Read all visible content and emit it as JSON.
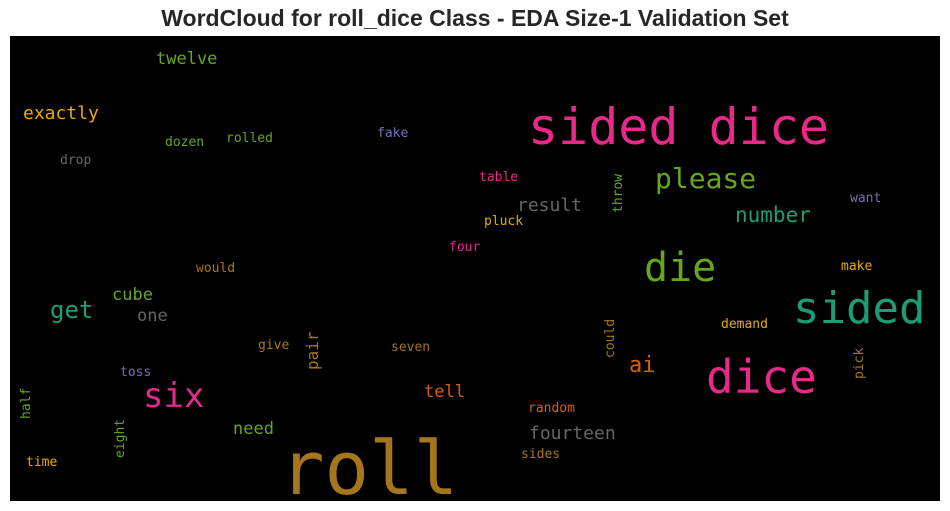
{
  "chart_data": {
    "type": "wordcloud",
    "title": "WordCloud for roll_dice Class - EDA Size-1 Validation Set",
    "background": "#000000",
    "words": [
      {
        "text": "roll",
        "weight": 1.0,
        "color": "#a6761d"
      },
      {
        "text": "sided dice",
        "weight": 0.78,
        "color": "#e7298a"
      },
      {
        "text": "dice",
        "weight": 0.72,
        "color": "#e7298a"
      },
      {
        "text": "sided",
        "weight": 0.68,
        "color": "#1b9e77"
      },
      {
        "text": "die",
        "weight": 0.6,
        "color": "#66a61e"
      },
      {
        "text": "six",
        "weight": 0.5,
        "color": "#e7298a"
      },
      {
        "text": "please",
        "weight": 0.44,
        "color": "#66a61e"
      },
      {
        "text": "number",
        "weight": 0.33,
        "color": "#1b9e77"
      },
      {
        "text": "get",
        "weight": 0.33,
        "color": "#1b9e77"
      },
      {
        "text": "exactly",
        "weight": 0.28,
        "color": "#e6ab02"
      },
      {
        "text": "ai",
        "weight": 0.3,
        "color": "#d95f02"
      },
      {
        "text": "result",
        "weight": 0.28,
        "color": "#666666"
      },
      {
        "text": "fourteen",
        "weight": 0.28,
        "color": "#666666"
      },
      {
        "text": "twelve",
        "weight": 0.26,
        "color": "#66a61e"
      },
      {
        "text": "cube",
        "weight": 0.26,
        "color": "#66a61e"
      },
      {
        "text": "one",
        "weight": 0.26,
        "color": "#666666"
      },
      {
        "text": "tell",
        "weight": 0.26,
        "color": "#d95f02"
      },
      {
        "text": "need",
        "weight": 0.26,
        "color": "#66a61e"
      },
      {
        "text": "pair",
        "weight": 0.24,
        "color": "#a6761d"
      },
      {
        "text": "throw",
        "weight": 0.2,
        "color": "#66a61e"
      },
      {
        "text": "dozen",
        "weight": 0.2,
        "color": "#66a61e"
      },
      {
        "text": "rolled",
        "weight": 0.2,
        "color": "#66a61e"
      },
      {
        "text": "fake",
        "weight": 0.2,
        "color": "#7570b3"
      },
      {
        "text": "drop",
        "weight": 0.2,
        "color": "#666666"
      },
      {
        "text": "table",
        "weight": 0.2,
        "color": "#e7298a"
      },
      {
        "text": "pluck",
        "weight": 0.2,
        "color": "#e6ab02"
      },
      {
        "text": "four",
        "weight": 0.2,
        "color": "#e7298a"
      },
      {
        "text": "want",
        "weight": 0.2,
        "color": "#7570b3"
      },
      {
        "text": "make",
        "weight": 0.2,
        "color": "#e6ab02"
      },
      {
        "text": "would",
        "weight": 0.2,
        "color": "#a6761d"
      },
      {
        "text": "demand",
        "weight": 0.2,
        "color": "#e6ab02"
      },
      {
        "text": "could",
        "weight": 0.2,
        "color": "#a6761d"
      },
      {
        "text": "give",
        "weight": 0.2,
        "color": "#a6761d"
      },
      {
        "text": "seven",
        "weight": 0.2,
        "color": "#a6761d"
      },
      {
        "text": "pick",
        "weight": 0.2,
        "color": "#a6761d"
      },
      {
        "text": "toss",
        "weight": 0.2,
        "color": "#7570b3"
      },
      {
        "text": "half",
        "weight": 0.2,
        "color": "#66a61e"
      },
      {
        "text": "eight",
        "weight": 0.2,
        "color": "#66a61e"
      },
      {
        "text": "random",
        "weight": 0.2,
        "color": "#d95f02"
      },
      {
        "text": "time",
        "weight": 0.2,
        "color": "#e6ab02"
      },
      {
        "text": "sides",
        "weight": 0.2,
        "color": "#a6761d"
      }
    ]
  }
}
